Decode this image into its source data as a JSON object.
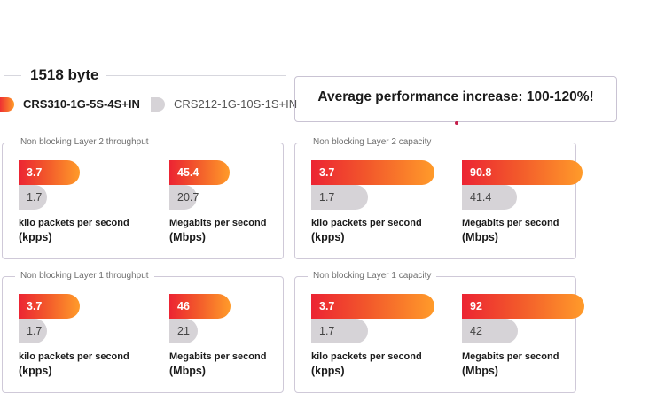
{
  "section": {
    "title": "1518 byte"
  },
  "legend": [
    {
      "label": "CRS310-1G-5S-4S+IN",
      "color": "#f03a2c"
    },
    {
      "label": "CRS212-1G-10S-1S+IN",
      "color": "#d6d3d7"
    }
  ],
  "highlight": {
    "text": "Average performance increase: 100-120%!"
  },
  "colors": {
    "accent_start": "#ec2433",
    "accent_end": "#ff9b2a",
    "baseline": "#d6d3d7",
    "border": "#cfc9d8"
  },
  "chart_data": [
    {
      "type": "bar",
      "title": "Non blocking Layer 2 throughput",
      "metrics": [
        {
          "unit_line1": "kilo packets per second",
          "unit_line2": "(kpps)",
          "max": 8,
          "values": [
            {
              "series": "CRS310-1G-5S-4S+IN",
              "value": 3.7,
              "label": "3.7"
            },
            {
              "series": "CRS212-1G-10S-1S+IN",
              "value": 1.7,
              "label": "1.7"
            }
          ]
        },
        {
          "unit_line1": "Megabits per second",
          "unit_line2": "(Mbps)",
          "max": 100,
          "values": [
            {
              "series": "CRS310-1G-5S-4S+IN",
              "value": 45.4,
              "label": "45.4"
            },
            {
              "series": "CRS212-1G-10S-1S+IN",
              "value": 20.7,
              "label": "20.7"
            }
          ]
        }
      ]
    },
    {
      "type": "bar",
      "title": "Non blocking Layer 2 capacity",
      "metrics": [
        {
          "unit_line1": "kilo packets per second",
          "unit_line2": "(kpps)",
          "max": 4,
          "values": [
            {
              "series": "CRS310-1G-5S-4S+IN",
              "value": 3.7,
              "label": "3.7"
            },
            {
              "series": "CRS212-1G-10S-1S+IN",
              "value": 1.7,
              "label": "1.7"
            }
          ]
        },
        {
          "unit_line1": "Megabits per second",
          "unit_line2": "(Mbps)",
          "max": 100,
          "values": [
            {
              "series": "CRS310-1G-5S-4S+IN",
              "value": 90.8,
              "label": "90.8"
            },
            {
              "series": "CRS212-1G-10S-1S+IN",
              "value": 41.4,
              "label": "41.4"
            }
          ]
        }
      ]
    },
    {
      "type": "bar",
      "title": "Non blocking Layer 1 throughput",
      "metrics": [
        {
          "unit_line1": "kilo packets per second",
          "unit_line2": "(kpps)",
          "max": 8,
          "values": [
            {
              "series": "CRS310-1G-5S-4S+IN",
              "value": 3.7,
              "label": "3.7"
            },
            {
              "series": "CRS212-1G-10S-1S+IN",
              "value": 1.7,
              "label": "1.7"
            }
          ]
        },
        {
          "unit_line1": "Megabits per second",
          "unit_line2": "(Mbps)",
          "max": 100,
          "values": [
            {
              "series": "CRS310-1G-5S-4S+IN",
              "value": 46,
              "label": "46"
            },
            {
              "series": "CRS212-1G-10S-1S+IN",
              "value": 21,
              "label": "21"
            }
          ]
        }
      ]
    },
    {
      "type": "bar",
      "title": "Non blocking Layer 1 capacity",
      "metrics": [
        {
          "unit_line1": "kilo packets per second",
          "unit_line2": "(kpps)",
          "max": 4,
          "values": [
            {
              "series": "CRS310-1G-5S-4S+IN",
              "value": 3.7,
              "label": "3.7"
            },
            {
              "series": "CRS212-1G-10S-1S+IN",
              "value": 1.7,
              "label": "1.7"
            }
          ]
        },
        {
          "unit_line1": "Megabits per second",
          "unit_line2": "(Mbps)",
          "max": 100,
          "values": [
            {
              "series": "CRS310-1G-5S-4S+IN",
              "value": 92,
              "label": "92"
            },
            {
              "series": "CRS212-1G-10S-1S+IN",
              "value": 42,
              "label": "42"
            }
          ]
        }
      ]
    }
  ]
}
